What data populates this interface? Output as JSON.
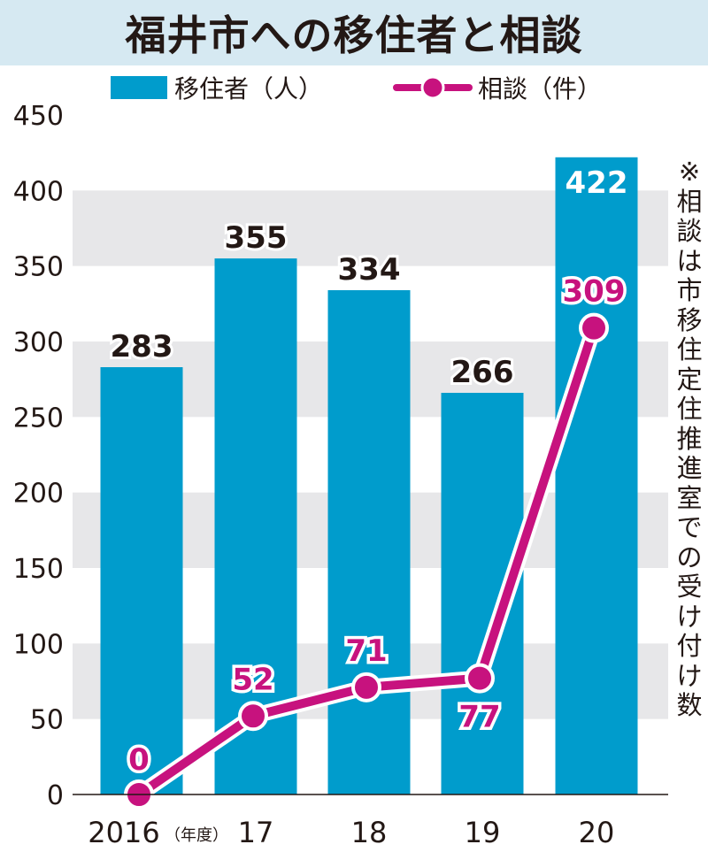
{
  "title": "福井市への移住者と相談",
  "note": "※相談は市移住定住推進室での受け付け数",
  "legend": {
    "bar": "移住者（人）",
    "line": "相談（件）"
  },
  "x_unit": "（年度）",
  "colors": {
    "bar": "#009ccc",
    "line": "#c7127e",
    "band": "#e7e7e9",
    "title_bg": "#d6e9f2"
  },
  "chart_data": {
    "type": "bar",
    "title": "福井市への移住者と相談",
    "categories": [
      "2016",
      "17",
      "18",
      "19",
      "20"
    ],
    "series": [
      {
        "name": "移住者（人）",
        "type": "bar",
        "values": [
          283,
          355,
          334,
          266,
          422
        ]
      },
      {
        "name": "相談（件）",
        "type": "line",
        "values": [
          0,
          52,
          71,
          77,
          309
        ]
      }
    ],
    "yticks": [
      "450",
      "400",
      "350",
      "300",
      "250",
      "200",
      "150",
      "100",
      "50",
      "0"
    ],
    "ylim": [
      0,
      450
    ],
    "grid": "alternating horizontal bands",
    "legend_position": "top"
  }
}
